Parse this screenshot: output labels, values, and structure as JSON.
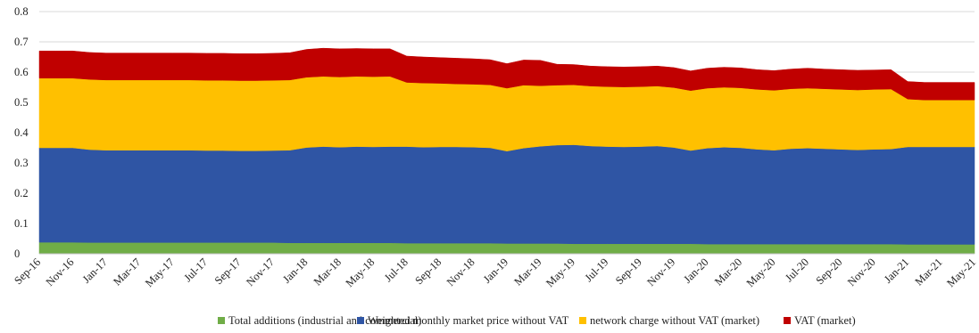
{
  "chart_data": {
    "type": "area",
    "stacked": true,
    "title": "",
    "xlabel": "",
    "ylabel": "",
    "ylim": [
      0,
      0.8
    ],
    "yticks": [
      "0",
      "0.1",
      "0.2",
      "0.3",
      "0.4",
      "0.5",
      "0.6",
      "0.7",
      "0.8"
    ],
    "grid": true,
    "legend_position": "bottom",
    "x": [
      "Sep-16",
      "Oct-16",
      "Nov-16",
      "Dec-16",
      "Jan-17",
      "Feb-17",
      "Mar-17",
      "Apr-17",
      "May-17",
      "Jun-17",
      "Jul-17",
      "Aug-17",
      "Sep-17",
      "Oct-17",
      "Nov-17",
      "Dec-17",
      "Jan-18",
      "Feb-18",
      "Mar-18",
      "Apr-18",
      "May-18",
      "Jun-18",
      "Jul-18",
      "Aug-18",
      "Sep-18",
      "Oct-18",
      "Nov-18",
      "Dec-18",
      "Jan-19",
      "Feb-19",
      "Mar-19",
      "Apr-19",
      "May-19",
      "Jun-19",
      "Jul-19",
      "Aug-19",
      "Sep-19",
      "Oct-19",
      "Nov-19",
      "Dec-19",
      "Jan-20",
      "Feb-20",
      "Mar-20",
      "Apr-20",
      "May-20",
      "Jun-20",
      "Jul-20",
      "Aug-20",
      "Sep-20",
      "Oct-20",
      "Nov-20",
      "Dec-20",
      "Jan-21",
      "Feb-21",
      "Mar-21",
      "Apr-21",
      "May-21"
    ],
    "x_tick_labels": [
      "Sep-16",
      "Nov-16",
      "Jan-17",
      "Mar-17",
      "May-17",
      "Jul-17",
      "Sep-17",
      "Nov-17",
      "Jan-18",
      "Mar-18",
      "May-18",
      "Jul-18",
      "Sep-18",
      "Nov-18",
      "Jan-19",
      "Mar-19",
      "May-19",
      "Jul-19",
      "Sep-19",
      "Nov-19",
      "Jan-20",
      "Mar-20",
      "May-20",
      "Jul-20",
      "Sep-20",
      "Nov-20",
      "Jan-21",
      "Mar-21",
      "May-21"
    ],
    "series": [
      {
        "name": "Total additions (industrial and commercial)",
        "color": "#70ad47",
        "values": [
          0.038,
          0.038,
          0.038,
          0.037,
          0.037,
          0.037,
          0.037,
          0.037,
          0.037,
          0.037,
          0.037,
          0.037,
          0.037,
          0.037,
          0.037,
          0.036,
          0.036,
          0.036,
          0.036,
          0.036,
          0.036,
          0.036,
          0.035,
          0.035,
          0.035,
          0.035,
          0.035,
          0.035,
          0.034,
          0.034,
          0.034,
          0.034,
          0.033,
          0.033,
          0.033,
          0.033,
          0.033,
          0.033,
          0.033,
          0.033,
          0.032,
          0.032,
          0.032,
          0.032,
          0.032,
          0.032,
          0.032,
          0.032,
          0.032,
          0.032,
          0.032,
          0.032,
          0.031,
          0.031,
          0.031,
          0.031,
          0.031
        ]
      },
      {
        "name": "Weighted monthly market price without VAT",
        "color": "#2f55a4",
        "values": [
          0.312,
          0.312,
          0.312,
          0.307,
          0.305,
          0.305,
          0.305,
          0.305,
          0.305,
          0.305,
          0.304,
          0.304,
          0.303,
          0.303,
          0.304,
          0.306,
          0.315,
          0.318,
          0.316,
          0.318,
          0.317,
          0.318,
          0.319,
          0.317,
          0.318,
          0.318,
          0.317,
          0.315,
          0.305,
          0.315,
          0.321,
          0.325,
          0.327,
          0.323,
          0.321,
          0.32,
          0.321,
          0.323,
          0.318,
          0.308,
          0.317,
          0.32,
          0.318,
          0.313,
          0.31,
          0.315,
          0.317,
          0.315,
          0.313,
          0.311,
          0.313,
          0.314,
          0.322,
          0.322,
          0.322,
          0.322,
          0.322
        ]
      },
      {
        "name": "network charge without VAT (market)",
        "color": "#ffc000",
        "values": [
          0.23,
          0.23,
          0.23,
          0.232,
          0.232,
          0.232,
          0.232,
          0.232,
          0.232,
          0.232,
          0.232,
          0.232,
          0.232,
          0.232,
          0.232,
          0.232,
          0.232,
          0.232,
          0.232,
          0.232,
          0.232,
          0.232,
          0.212,
          0.212,
          0.21,
          0.208,
          0.208,
          0.208,
          0.208,
          0.208,
          0.2,
          0.198,
          0.198,
          0.198,
          0.198,
          0.198,
          0.198,
          0.198,
          0.198,
          0.198,
          0.198,
          0.198,
          0.198,
          0.198,
          0.198,
          0.198,
          0.198,
          0.198,
          0.198,
          0.198,
          0.198,
          0.198,
          0.158,
          0.155,
          0.155,
          0.155,
          0.155
        ]
      },
      {
        "name": "VAT (market)",
        "color": "#c00000",
        "values": [
          0.09,
          0.09,
          0.09,
          0.089,
          0.089,
          0.089,
          0.089,
          0.089,
          0.089,
          0.089,
          0.089,
          0.089,
          0.089,
          0.089,
          0.089,
          0.09,
          0.092,
          0.093,
          0.093,
          0.092,
          0.092,
          0.091,
          0.087,
          0.086,
          0.085,
          0.085,
          0.084,
          0.083,
          0.081,
          0.083,
          0.084,
          0.069,
          0.067,
          0.066,
          0.066,
          0.066,
          0.066,
          0.066,
          0.066,
          0.065,
          0.066,
          0.066,
          0.066,
          0.065,
          0.065,
          0.065,
          0.066,
          0.065,
          0.065,
          0.065,
          0.064,
          0.064,
          0.058,
          0.058,
          0.058,
          0.058,
          0.058
        ]
      }
    ]
  }
}
